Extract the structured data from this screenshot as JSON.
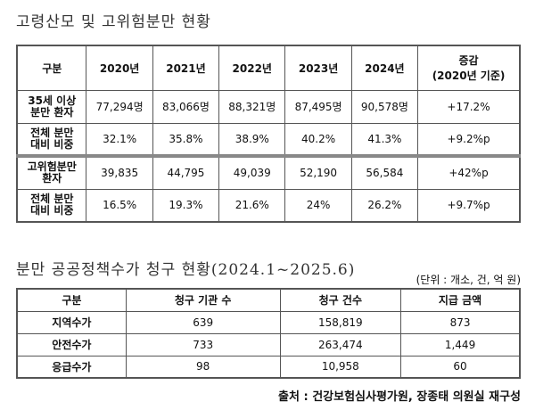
{
  "table1": {
    "title": "고령산모 및 고위험분만 현황",
    "headers": [
      "구분",
      "2020년",
      "2021년",
      "2022년",
      "2023년",
      "2024년",
      "증감\n(2020년 기준)"
    ],
    "rows": [
      {
        "label": "35세 이상\n분만 환자",
        "values": [
          "77,294명",
          "83,066명",
          "88,321명",
          "87,495명",
          "90,578명",
          "+17.2%"
        ]
      },
      {
        "label": "전체 분만\n대비 비중",
        "values": [
          "32.1%",
          "35.8%",
          "38.9%",
          "40.2%",
          "41.3%",
          "+9.2%p"
        ]
      },
      {
        "label": "고위험분만\n환자",
        "values": [
          "39,835",
          "44,795",
          "49,039",
          "52,190",
          "56,584",
          "+42%p"
        ]
      },
      {
        "label": "전체 분만\n대비 비중",
        "values": [
          "16.5%",
          "19.3%",
          "21.6%",
          "24%",
          "26.2%",
          "+9.7%p"
        ]
      }
    ]
  },
  "table2": {
    "title": "분만 공공정책수가 청구 현황(2024.1~2025.6)",
    "unit": "(단위 : 개소, 건, 억 원)",
    "headers": [
      "구분",
      "청구 기관 수",
      "청구 건수",
      "지급 금액"
    ],
    "rows": [
      {
        "label": "지역수가",
        "values": [
          "639",
          "158,819",
          "873"
        ]
      },
      {
        "label": "안전수가",
        "values": [
          "733",
          "263,474",
          "1,449"
        ]
      },
      {
        "label": "응급수가",
        "values": [
          "98",
          "10,958",
          "60"
        ]
      }
    ]
  },
  "source": "출처 : 건강보험심사평가원, 장종태 의원실 재구성"
}
